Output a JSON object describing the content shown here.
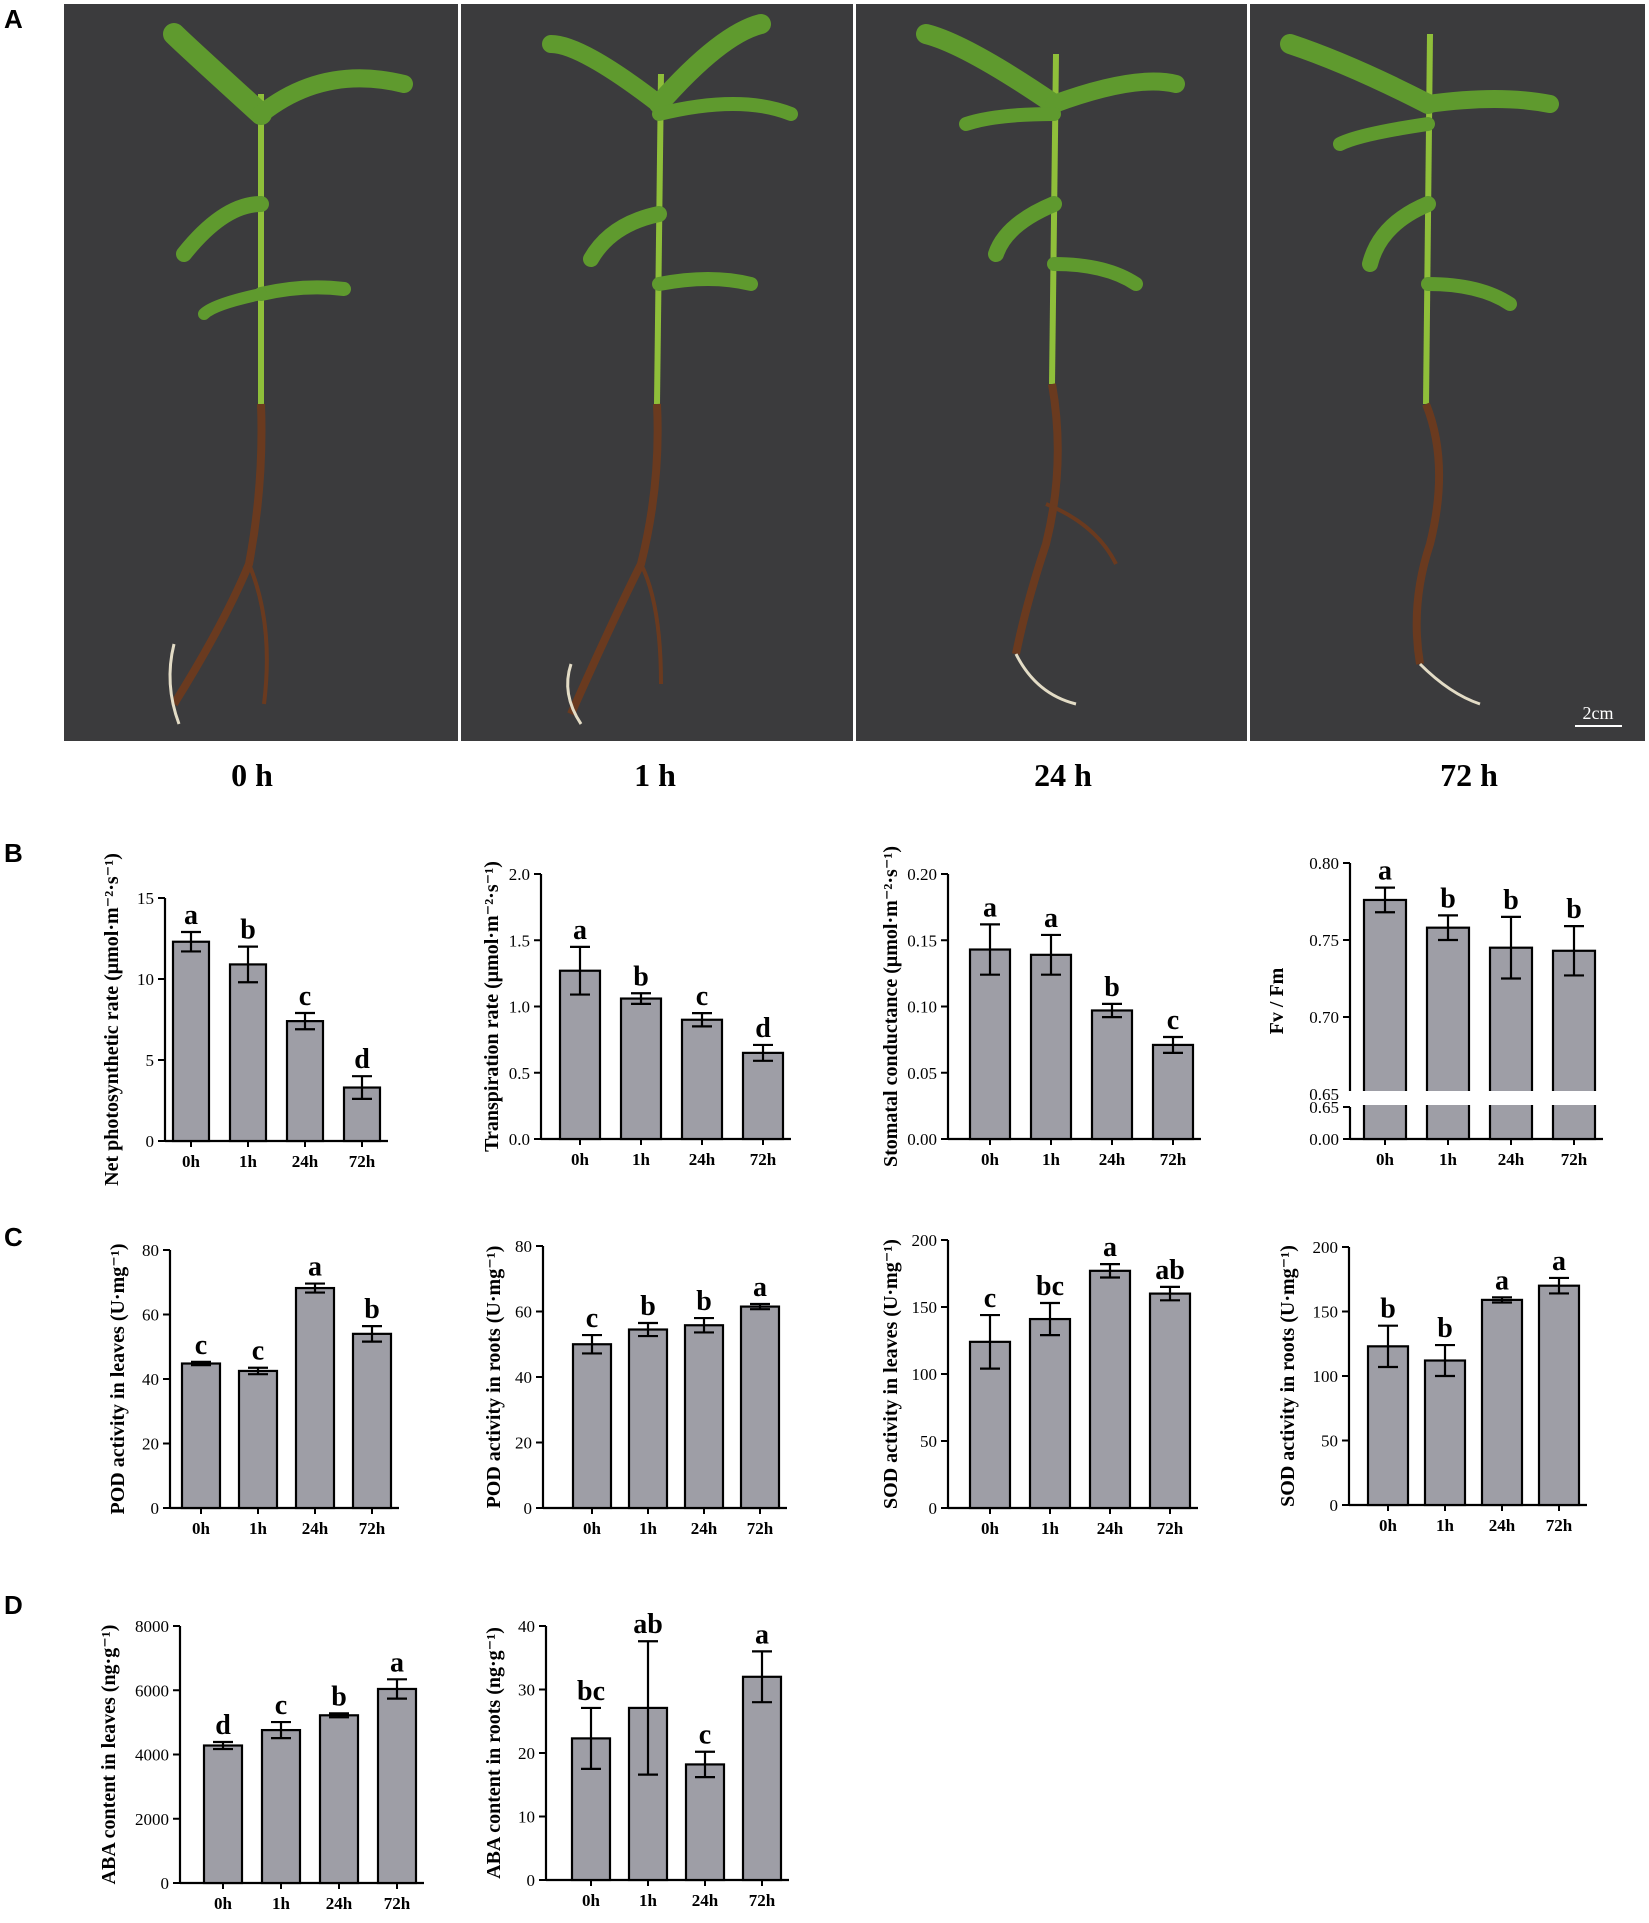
{
  "panel_labels": {
    "a": "A",
    "b": "B",
    "c": "C",
    "d": "D"
  },
  "photos": {
    "captions": [
      "0 h",
      "1 h",
      "24 h",
      "72 h"
    ],
    "scale_bar_label": "2cm",
    "colors": {
      "background": "#3b3b3d",
      "stem": "#8fbf3a",
      "leaf": "#5f9a2e",
      "root": "#6a3a1f",
      "root_tip": "#e3dcc6"
    }
  },
  "bar_color": "#9e9ea6",
  "chart_data": [
    {
      "id": "B1",
      "type": "bar",
      "categories": [
        "0h",
        "1h",
        "24h",
        "72h"
      ],
      "values": [
        12.3,
        10.9,
        7.4,
        3.3
      ],
      "errors": [
        0.6,
        1.1,
        0.5,
        0.7
      ],
      "letters": [
        "a",
        "b",
        "c",
        "d"
      ],
      "ylabel": "Net photosynthetic rate (μmol·m⁻²·s⁻¹)",
      "ylim": [
        0,
        15
      ],
      "yticks": [
        "0",
        "5",
        "10",
        "15"
      ],
      "ytick_values": [
        0,
        5,
        10,
        15
      ]
    },
    {
      "id": "B2",
      "type": "bar",
      "categories": [
        "0h",
        "1h",
        "24h",
        "72h"
      ],
      "values": [
        1.27,
        1.06,
        0.9,
        0.65
      ],
      "errors": [
        0.18,
        0.04,
        0.05,
        0.06
      ],
      "letters": [
        "a",
        "b",
        "c",
        "d"
      ],
      "ylabel": "Transpiration rate (μmol·m⁻²·s⁻¹)",
      "ylim": [
        0,
        2.0
      ],
      "yticks": [
        "0.0",
        "0.5",
        "1.0",
        "1.5",
        "2.0"
      ],
      "ytick_values": [
        0,
        0.5,
        1.0,
        1.5,
        2.0
      ]
    },
    {
      "id": "B3",
      "type": "bar",
      "categories": [
        "0h",
        "1h",
        "24h",
        "72h"
      ],
      "values": [
        0.143,
        0.139,
        0.097,
        0.071
      ],
      "errors": [
        0.019,
        0.015,
        0.005,
        0.006
      ],
      "letters": [
        "a",
        "a",
        "b",
        "c"
      ],
      "ylabel": "Stomatal conductance (μmol·m⁻²·s⁻¹)",
      "ylim": [
        0,
        0.2
      ],
      "yticks": [
        "0.00",
        "0.05",
        "0.10",
        "0.15",
        "0.20"
      ],
      "ytick_values": [
        0,
        0.05,
        0.1,
        0.15,
        0.2
      ]
    },
    {
      "id": "B4",
      "type": "bar",
      "categories": [
        "0h",
        "1h",
        "24h",
        "72h"
      ],
      "values": [
        0.776,
        0.758,
        0.745,
        0.743
      ],
      "errors": [
        0.008,
        0.008,
        0.02,
        0.016
      ],
      "letters": [
        "a",
        "b",
        "b",
        "b"
      ],
      "ylabel": "Fv / Fm",
      "ylim": [
        0.65,
        0.8
      ],
      "yticks": [
        "0.65",
        "0.70",
        "0.75",
        "0.80"
      ],
      "ytick_values": [
        0.65,
        0.7,
        0.75,
        0.8
      ],
      "axis_break": true,
      "lower_ticks": [
        "0.65",
        "0.00"
      ]
    },
    {
      "id": "C1",
      "type": "bar",
      "categories": [
        "0h",
        "1h",
        "24h",
        "72h"
      ],
      "values": [
        44.8,
        42.5,
        68.2,
        54.0
      ],
      "errors": [
        0.5,
        1.0,
        1.4,
        2.4
      ],
      "letters": [
        "c",
        "c",
        "a",
        "b"
      ],
      "ylabel": "POD activity in leaves (U·mg⁻¹)",
      "ylim": [
        0,
        80
      ],
      "yticks": [
        "0",
        "20",
        "40",
        "60",
        "80"
      ],
      "ytick_values": [
        0,
        20,
        40,
        60,
        80
      ]
    },
    {
      "id": "C2",
      "type": "bar",
      "categories": [
        "0h",
        "1h",
        "24h",
        "72h"
      ],
      "values": [
        50.0,
        54.5,
        55.8,
        61.5
      ],
      "errors": [
        2.8,
        2.0,
        2.2,
        0.8
      ],
      "letters": [
        "c",
        "b",
        "b",
        "a"
      ],
      "ylabel": "POD activity in roots (U·mg⁻¹)",
      "ylim": [
        0,
        80
      ],
      "yticks": [
        "0",
        "20",
        "40",
        "60",
        "80"
      ],
      "ytick_values": [
        0,
        20,
        40,
        60,
        80
      ]
    },
    {
      "id": "C3",
      "type": "bar",
      "categories": [
        "0h",
        "1h",
        "24h",
        "72h"
      ],
      "values": [
        124,
        141,
        177,
        160
      ],
      "errors": [
        20,
        12,
        5,
        5
      ],
      "letters": [
        "c",
        "bc",
        "a",
        "ab"
      ],
      "ylabel": "SOD activity in leaves (U·mg⁻¹)",
      "ylim": [
        0,
        200
      ],
      "yticks": [
        "0",
        "50",
        "100",
        "150",
        "200"
      ],
      "ytick_values": [
        0,
        50,
        100,
        150,
        200
      ]
    },
    {
      "id": "C4",
      "type": "bar",
      "categories": [
        "0h",
        "1h",
        "24h",
        "72h"
      ],
      "values": [
        123,
        112,
        159,
        170
      ],
      "errors": [
        16,
        12,
        2,
        6
      ],
      "letters": [
        "b",
        "b",
        "a",
        "a"
      ],
      "ylabel": "SOD activity in roots (U·mg⁻¹)",
      "ylim": [
        0,
        200
      ],
      "yticks": [
        "0",
        "50",
        "100",
        "150",
        "200"
      ],
      "ytick_values": [
        0,
        50,
        100,
        150,
        200
      ]
    },
    {
      "id": "D1",
      "type": "bar",
      "categories": [
        "0h",
        "1h",
        "24h",
        "72h"
      ],
      "values": [
        4280,
        4760,
        5220,
        6040
      ],
      "errors": [
        110,
        250,
        60,
        300
      ],
      "letters": [
        "d",
        "c",
        "b",
        "a"
      ],
      "ylabel": "ABA content in leaves (ng·g⁻¹)",
      "ylim": [
        0,
        8000
      ],
      "yticks": [
        "0",
        "2000",
        "4000",
        "6000",
        "8000"
      ],
      "ytick_values": [
        0,
        2000,
        4000,
        6000,
        8000
      ]
    },
    {
      "id": "D2",
      "type": "bar",
      "categories": [
        "0h",
        "1h",
        "24h",
        "72h"
      ],
      "values": [
        22.3,
        27.1,
        18.2,
        32.0
      ],
      "errors": [
        4.8,
        10.5,
        2.0,
        4.0
      ],
      "letters": [
        "bc",
        "ab",
        "c",
        "a"
      ],
      "ylabel": "ABA content in roots (ng·g⁻¹)",
      "ylim": [
        0,
        40
      ],
      "yticks": [
        "0",
        "10",
        "20",
        "30",
        "40"
      ],
      "ytick_values": [
        0,
        10,
        20,
        30,
        40
      ]
    }
  ]
}
